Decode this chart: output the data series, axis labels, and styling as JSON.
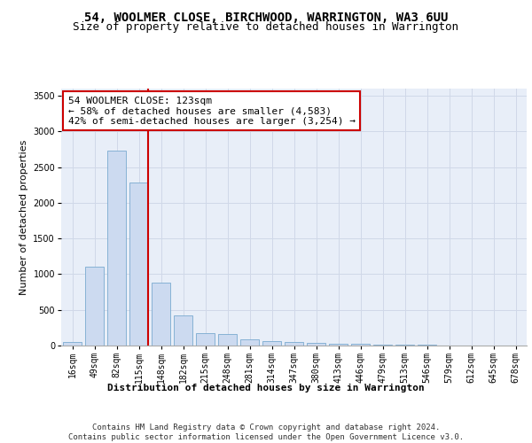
{
  "title": "54, WOOLMER CLOSE, BIRCHWOOD, WARRINGTON, WA3 6UU",
  "subtitle": "Size of property relative to detached houses in Warrington",
  "xlabel": "Distribution of detached houses by size in Warrington",
  "ylabel": "Number of detached properties",
  "bar_labels": [
    "16sqm",
    "49sqm",
    "82sqm",
    "115sqm",
    "148sqm",
    "182sqm",
    "215sqm",
    "248sqm",
    "281sqm",
    "314sqm",
    "347sqm",
    "380sqm",
    "413sqm",
    "446sqm",
    "479sqm",
    "513sqm",
    "546sqm",
    "579sqm",
    "612sqm",
    "645sqm",
    "678sqm"
  ],
  "bar_values": [
    55,
    1100,
    2730,
    2290,
    880,
    420,
    170,
    165,
    90,
    60,
    55,
    40,
    30,
    25,
    15,
    10,
    8,
    5,
    3,
    2,
    2
  ],
  "bar_color": "#ccdaf0",
  "bar_edgecolor": "#7aaad0",
  "vline_x_index": 3,
  "vline_color": "#cc0000",
  "annotation_text": "54 WOOLMER CLOSE: 123sqm\n← 58% of detached houses are smaller (4,583)\n42% of semi-detached houses are larger (3,254) →",
  "annotation_box_color": "#ffffff",
  "annotation_box_edgecolor": "#cc0000",
  "ylim": [
    0,
    3600
  ],
  "yticks": [
    0,
    500,
    1000,
    1500,
    2000,
    2500,
    3000,
    3500
  ],
  "grid_color": "#d0d8e8",
  "background_color": "#e8eef8",
  "footer_text": "Contains HM Land Registry data © Crown copyright and database right 2024.\nContains public sector information licensed under the Open Government Licence v3.0.",
  "title_fontsize": 10,
  "subtitle_fontsize": 9,
  "xlabel_fontsize": 8,
  "ylabel_fontsize": 8,
  "tick_fontsize": 7,
  "annotation_fontsize": 8,
  "footer_fontsize": 6.5
}
